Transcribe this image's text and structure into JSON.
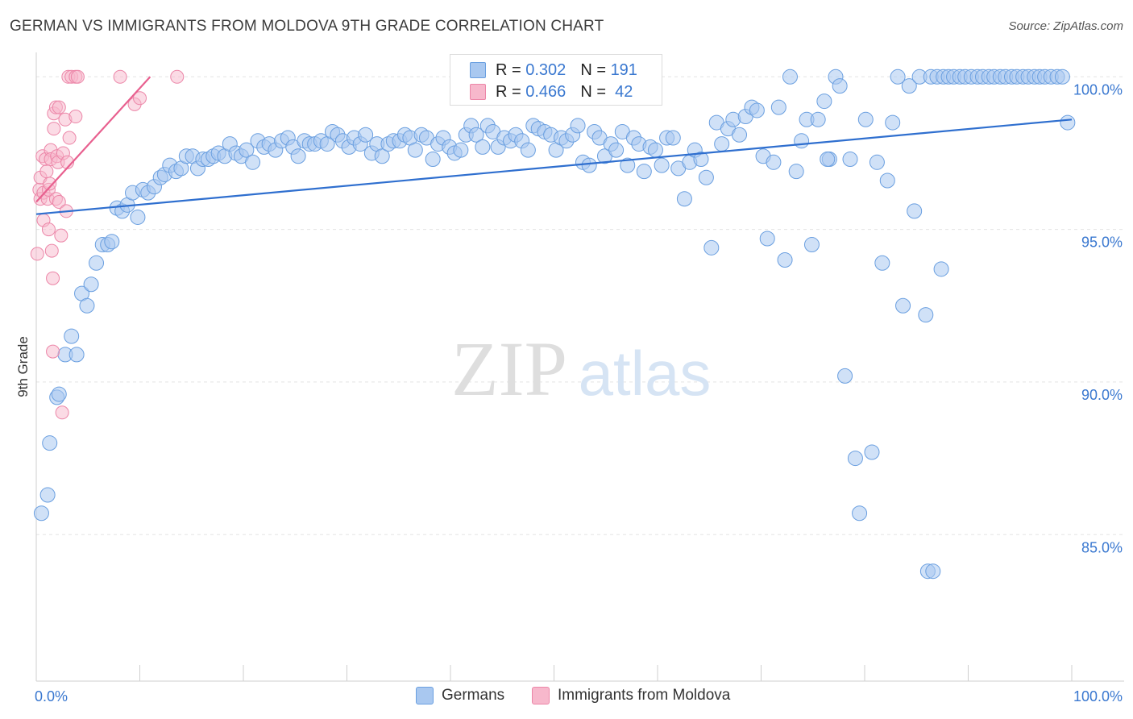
{
  "title": "GERMAN VS IMMIGRANTS FROM MOLDOVA 9TH GRADE CORRELATION CHART",
  "source": "Source: ZipAtlas.com",
  "watermark": {
    "zip": "ZIP",
    "atlas": "atlas"
  },
  "legend": {
    "rows": [
      {
        "r_label": "R =",
        "r_value": "0.302",
        "n_label": "N =",
        "n_value": "191"
      },
      {
        "r_label": "R =",
        "r_value": "0.466",
        "n_label": "N =",
        "n_value": "42"
      }
    ]
  },
  "bottom_legend": [
    "Germans",
    "Immigrants from Moldova"
  ],
  "colors": {
    "germans_fill": "#a9c8f0",
    "germans_stroke": "#6a9fe0",
    "germans_line": "#2f6fcf",
    "moldova_fill": "#f7b8cc",
    "moldova_stroke": "#ec86a8",
    "moldova_line": "#e8608f",
    "axis_label": "#3a78d0",
    "grid": "#e3e3e3"
  },
  "chart_data": {
    "type": "scatter",
    "title": "GERMAN VS IMMIGRANTS FROM MOLDOVA 9TH GRADE CORRELATION CHART",
    "xlabel": "",
    "ylabel": "9th Grade",
    "xlim": [
      0,
      100
    ],
    "ylim": [
      80.2,
      100.8
    ],
    "x_tick_labels": [
      "0.0%",
      "100.0%"
    ],
    "y_ticks": [
      85,
      90,
      95,
      100
    ],
    "y_tick_labels": [
      "85.0%",
      "90.0%",
      "95.0%",
      "100.0%"
    ],
    "grid": "horizontal dashed",
    "legend_position": "top-center",
    "series": [
      {
        "name": "Germans",
        "r": 0.302,
        "n": 191,
        "trend": {
          "x": [
            0,
            100
          ],
          "y": [
            95.5,
            98.6
          ]
        },
        "points": [
          [
            0.5,
            85.7
          ],
          [
            1.1,
            86.3
          ],
          [
            1.3,
            88.0
          ],
          [
            2.0,
            89.5
          ],
          [
            2.2,
            89.6
          ],
          [
            2.8,
            90.9
          ],
          [
            3.4,
            91.5
          ],
          [
            3.9,
            90.9
          ],
          [
            4.4,
            92.9
          ],
          [
            4.9,
            92.5
          ],
          [
            5.3,
            93.2
          ],
          [
            5.8,
            93.9
          ],
          [
            6.4,
            94.5
          ],
          [
            6.9,
            94.5
          ],
          [
            7.3,
            94.6
          ],
          [
            7.8,
            95.7
          ],
          [
            8.3,
            95.6
          ],
          [
            8.8,
            95.8
          ],
          [
            9.3,
            96.2
          ],
          [
            9.8,
            95.4
          ],
          [
            10.3,
            96.3
          ],
          [
            10.8,
            96.2
          ],
          [
            11.4,
            96.4
          ],
          [
            12.0,
            96.7
          ],
          [
            12.4,
            96.8
          ],
          [
            12.9,
            97.1
          ],
          [
            13.5,
            96.9
          ],
          [
            14.0,
            97.0
          ],
          [
            14.5,
            97.4
          ],
          [
            15.1,
            97.4
          ],
          [
            15.6,
            97.0
          ],
          [
            16.1,
            97.3
          ],
          [
            16.6,
            97.3
          ],
          [
            17.1,
            97.4
          ],
          [
            17.6,
            97.5
          ],
          [
            18.2,
            97.4
          ],
          [
            18.7,
            97.8
          ],
          [
            19.3,
            97.5
          ],
          [
            19.8,
            97.4
          ],
          [
            20.3,
            97.6
          ],
          [
            20.9,
            97.2
          ],
          [
            21.4,
            97.9
          ],
          [
            22.0,
            97.7
          ],
          [
            22.5,
            97.8
          ],
          [
            23.1,
            97.6
          ],
          [
            23.7,
            97.9
          ],
          [
            24.3,
            98.0
          ],
          [
            24.8,
            97.7
          ],
          [
            25.3,
            97.4
          ],
          [
            25.9,
            97.9
          ],
          [
            26.4,
            97.8
          ],
          [
            26.9,
            97.8
          ],
          [
            27.5,
            97.9
          ],
          [
            28.1,
            97.8
          ],
          [
            28.6,
            98.2
          ],
          [
            29.1,
            98.1
          ],
          [
            29.6,
            97.9
          ],
          [
            30.2,
            97.7
          ],
          [
            30.7,
            98.0
          ],
          [
            31.3,
            97.8
          ],
          [
            31.8,
            98.1
          ],
          [
            32.4,
            97.5
          ],
          [
            32.9,
            97.8
          ],
          [
            33.4,
            97.4
          ],
          [
            34.0,
            97.8
          ],
          [
            34.5,
            97.9
          ],
          [
            35.1,
            97.9
          ],
          [
            35.6,
            98.1
          ],
          [
            36.1,
            98.0
          ],
          [
            36.6,
            97.6
          ],
          [
            37.2,
            98.1
          ],
          [
            37.7,
            98.0
          ],
          [
            38.3,
            97.3
          ],
          [
            38.8,
            97.8
          ],
          [
            39.3,
            98.0
          ],
          [
            39.9,
            97.7
          ],
          [
            40.4,
            97.5
          ],
          [
            41.0,
            97.6
          ],
          [
            41.5,
            98.1
          ],
          [
            42.0,
            98.4
          ],
          [
            42.5,
            98.1
          ],
          [
            43.1,
            97.7
          ],
          [
            43.6,
            98.4
          ],
          [
            44.1,
            98.2
          ],
          [
            44.6,
            97.7
          ],
          [
            45.2,
            98.0
          ],
          [
            45.8,
            97.9
          ],
          [
            46.3,
            98.1
          ],
          [
            46.9,
            97.9
          ],
          [
            47.5,
            97.6
          ],
          [
            48.0,
            98.4
          ],
          [
            48.5,
            98.3
          ],
          [
            49.1,
            98.2
          ],
          [
            49.7,
            98.1
          ],
          [
            50.2,
            97.6
          ],
          [
            50.7,
            98.0
          ],
          [
            51.2,
            97.9
          ],
          [
            51.8,
            98.1
          ],
          [
            52.3,
            98.4
          ],
          [
            52.8,
            97.2
          ],
          [
            53.4,
            97.1
          ],
          [
            53.9,
            98.2
          ],
          [
            54.4,
            98.0
          ],
          [
            54.9,
            97.4
          ],
          [
            55.5,
            97.8
          ],
          [
            56.0,
            97.6
          ],
          [
            56.6,
            98.2
          ],
          [
            57.1,
            97.1
          ],
          [
            57.7,
            98.0
          ],
          [
            58.2,
            97.8
          ],
          [
            58.7,
            96.9
          ],
          [
            59.3,
            97.7
          ],
          [
            59.8,
            97.6
          ],
          [
            60.4,
            97.1
          ],
          [
            60.9,
            98.0
          ],
          [
            61.5,
            98.0
          ],
          [
            62.0,
            97.0
          ],
          [
            62.6,
            96.0
          ],
          [
            63.1,
            97.2
          ],
          [
            63.6,
            97.6
          ],
          [
            64.2,
            97.3
          ],
          [
            64.7,
            96.7
          ],
          [
            65.2,
            94.4
          ],
          [
            65.7,
            98.5
          ],
          [
            66.2,
            97.8
          ],
          [
            66.8,
            98.3
          ],
          [
            67.3,
            98.6
          ],
          [
            67.9,
            98.1
          ],
          [
            68.5,
            98.7
          ],
          [
            69.1,
            99.0
          ],
          [
            69.6,
            98.9
          ],
          [
            70.2,
            97.4
          ],
          [
            70.6,
            94.7
          ],
          [
            71.2,
            97.2
          ],
          [
            71.7,
            99.0
          ],
          [
            72.3,
            94.0
          ],
          [
            72.8,
            100.0
          ],
          [
            73.4,
            96.9
          ],
          [
            73.9,
            97.9
          ],
          [
            74.4,
            98.6
          ],
          [
            74.9,
            94.5
          ],
          [
            75.5,
            98.6
          ],
          [
            76.1,
            99.2
          ],
          [
            76.6,
            97.3
          ],
          [
            77.2,
            100.0
          ],
          [
            77.6,
            99.7
          ],
          [
            78.1,
            90.2
          ],
          [
            78.6,
            97.3
          ],
          [
            79.1,
            87.5
          ],
          [
            79.5,
            85.7
          ],
          [
            80.1,
            98.6
          ],
          [
            80.7,
            87.7
          ],
          [
            81.2,
            97.2
          ],
          [
            81.7,
            93.9
          ],
          [
            82.2,
            96.6
          ],
          [
            82.7,
            98.5
          ],
          [
            83.2,
            100.0
          ],
          [
            83.7,
            92.5
          ],
          [
            84.3,
            99.7
          ],
          [
            84.8,
            95.6
          ],
          [
            85.3,
            100.0
          ],
          [
            85.9,
            92.2
          ],
          [
            86.4,
            100.0
          ],
          [
            87.0,
            100.0
          ],
          [
            87.6,
            100.0
          ],
          [
            88.1,
            100.0
          ],
          [
            88.6,
            100.0
          ],
          [
            89.2,
            100.0
          ],
          [
            89.7,
            100.0
          ],
          [
            90.3,
            100.0
          ],
          [
            90.9,
            100.0
          ],
          [
            91.4,
            100.0
          ],
          [
            92.0,
            100.0
          ],
          [
            92.5,
            100.0
          ],
          [
            93.1,
            100.0
          ],
          [
            93.6,
            100.0
          ],
          [
            94.2,
            100.0
          ],
          [
            94.7,
            100.0
          ],
          [
            95.3,
            100.0
          ],
          [
            95.8,
            100.0
          ],
          [
            96.4,
            100.0
          ],
          [
            96.9,
            100.0
          ],
          [
            97.4,
            100.0
          ],
          [
            98.0,
            100.0
          ],
          [
            98.6,
            100.0
          ],
          [
            99.1,
            100.0
          ],
          [
            99.6,
            98.5
          ],
          [
            86.1,
            83.8
          ],
          [
            86.6,
            83.8
          ],
          [
            87.4,
            93.7
          ],
          [
            76.4,
            97.3
          ]
        ]
      },
      {
        "name": "Immigrants from Moldova",
        "r": 0.466,
        "n": 42,
        "trend": {
          "x": [
            0,
            11
          ],
          "y": [
            95.9,
            100.0
          ]
        },
        "points": [
          [
            0.1,
            94.2
          ],
          [
            0.3,
            96.3
          ],
          [
            0.4,
            96.0
          ],
          [
            0.4,
            96.7
          ],
          [
            0.6,
            97.4
          ],
          [
            0.7,
            95.3
          ],
          [
            0.7,
            96.2
          ],
          [
            0.9,
            97.3
          ],
          [
            1.0,
            96.9
          ],
          [
            1.1,
            96.0
          ],
          [
            1.2,
            95.0
          ],
          [
            1.2,
            96.3
          ],
          [
            1.3,
            96.5
          ],
          [
            1.4,
            97.6
          ],
          [
            1.4,
            97.3
          ],
          [
            1.5,
            94.3
          ],
          [
            1.6,
            91.0
          ],
          [
            1.6,
            93.4
          ],
          [
            1.7,
            98.3
          ],
          [
            1.7,
            98.8
          ],
          [
            1.9,
            96.0
          ],
          [
            1.9,
            99.0
          ],
          [
            2.0,
            97.4
          ],
          [
            2.1,
            97.2
          ],
          [
            2.2,
            95.9
          ],
          [
            2.2,
            99.0
          ],
          [
            2.4,
            94.8
          ],
          [
            2.5,
            89.0
          ],
          [
            2.6,
            97.5
          ],
          [
            2.8,
            98.6
          ],
          [
            2.9,
            95.6
          ],
          [
            3.0,
            97.2
          ],
          [
            3.1,
            100.0
          ],
          [
            3.2,
            98.0
          ],
          [
            3.4,
            100.0
          ],
          [
            3.8,
            98.7
          ],
          [
            3.8,
            100.0
          ],
          [
            4.0,
            100.0
          ],
          [
            8.1,
            100.0
          ],
          [
            9.5,
            99.1
          ],
          [
            10.0,
            99.3
          ],
          [
            13.6,
            100.0
          ]
        ]
      }
    ]
  }
}
